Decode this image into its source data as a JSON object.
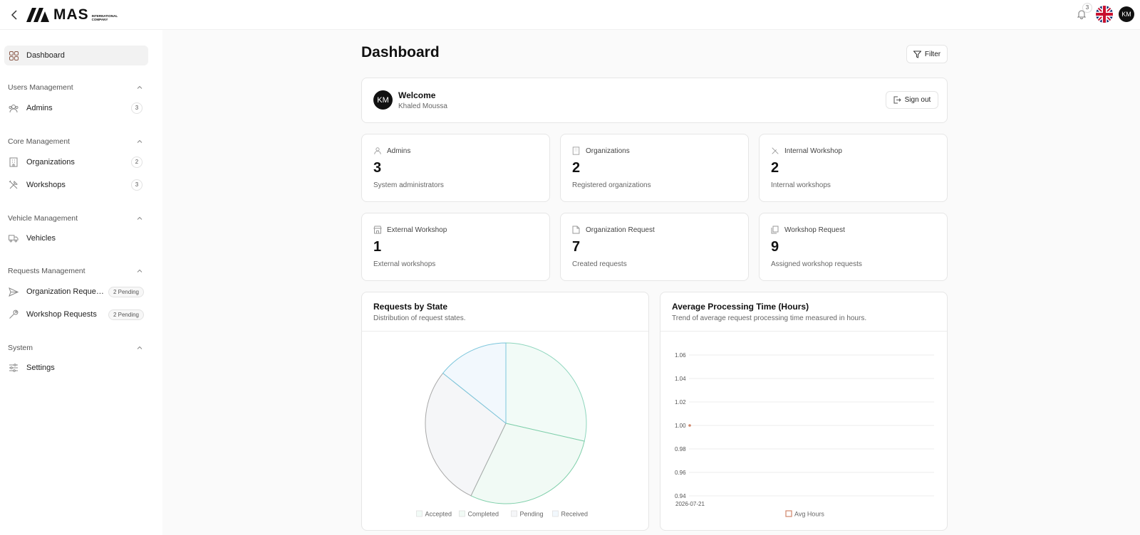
{
  "header": {
    "logo_text": "MAS",
    "logo_sub": "INTERNATIONAL COMPANY",
    "notifications_count": "3",
    "avatar_initials": "KM"
  },
  "sidebar": {
    "dashboard": "Dashboard",
    "sections": {
      "users": "Users Management",
      "core": "Core Management",
      "vehicle": "Vehicle Management",
      "requests": "Requests Management",
      "system": "System"
    },
    "items": {
      "admins": {
        "label": "Admins",
        "count": "3"
      },
      "organizations": {
        "label": "Organizations",
        "count": "2"
      },
      "workshops": {
        "label": "Workshops",
        "count": "3"
      },
      "vehicles": {
        "label": "Vehicles"
      },
      "org_requests": {
        "label": "Organization Reques...",
        "badge": "2 Pending"
      },
      "workshop_requests": {
        "label": "Workshop Requests",
        "badge": "2 Pending"
      },
      "settings": {
        "label": "Settings"
      }
    }
  },
  "main": {
    "title": "Dashboard",
    "filter_label": "Filter",
    "welcome": {
      "title": "Welcome",
      "name": "Khaled Moussa",
      "initials": "KM",
      "sign_out": "Sign out"
    },
    "stats": [
      {
        "label": "Admins",
        "value": "3",
        "desc": "System administrators"
      },
      {
        "label": "Organizations",
        "value": "2",
        "desc": "Registered organizations"
      },
      {
        "label": "Internal Workshop",
        "value": "2",
        "desc": "Internal workshops"
      },
      {
        "label": "External Workshop",
        "value": "1",
        "desc": "External workshops"
      },
      {
        "label": "Organization Request",
        "value": "7",
        "desc": "Created requests"
      },
      {
        "label": "Workshop Request",
        "value": "9",
        "desc": "Assigned workshop requests"
      }
    ]
  },
  "chart_data": [
    {
      "type": "pie",
      "title": "Requests by State",
      "subtitle": "Distribution of request states.",
      "categories": [
        "Accepted",
        "Completed",
        "Pending",
        "Received"
      ],
      "values": [
        2,
        2,
        2,
        1
      ],
      "legend_position": "bottom"
    },
    {
      "type": "line",
      "title": "Average Processing Time (Hours)",
      "subtitle": "Trend of average request processing time measured in hours.",
      "x": [
        "2026-07-21"
      ],
      "series": [
        {
          "name": "Avg Hours",
          "values": [
            1.0
          ]
        }
      ],
      "ylim": [
        0.94,
        1.06
      ],
      "yticks": [
        "1.06",
        "1.04",
        "1.02",
        "1.00",
        "0.98",
        "0.96",
        "0.94"
      ],
      "grid": true,
      "legend_position": "bottom"
    }
  ]
}
